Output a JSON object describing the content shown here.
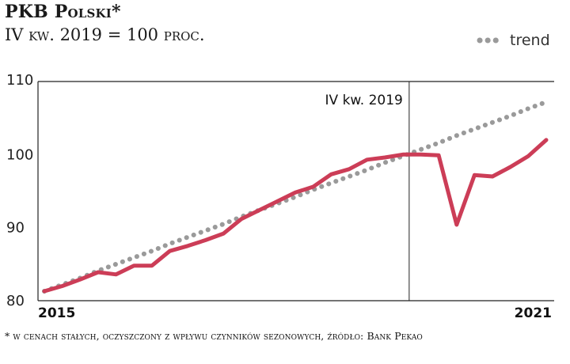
{
  "header": {
    "title": "PKB Polski*",
    "subtitle": "IV kw. 2019 = 100 proc."
  },
  "legend": {
    "trend_label": "trend"
  },
  "footnote": "* w cenach stałych, oczyszczony z wpływu czynników sezonowych, źródło: Bank Pekao",
  "colors": {
    "gdp": "#cc3d57",
    "trend": "#9a9a9a",
    "axis": "#222222"
  },
  "chart_data": {
    "type": "line",
    "title": "PKB Polski*",
    "subtitle": "IV kw. 2019 = 100 proc.",
    "ylim": [
      80,
      110
    ],
    "yticks": [
      "110",
      "100",
      "90",
      "80"
    ],
    "x_labels": {
      "start": "2015",
      "end": "2021"
    },
    "marker": {
      "label": "IV kw. 2019",
      "index": 20
    },
    "grid": false,
    "legend_position": "top-right",
    "series": [
      {
        "role": "gdp",
        "values": [
          81.3,
          82.0,
          82.9,
          83.9,
          83.6,
          84.8,
          84.8,
          86.8,
          87.5,
          88.3,
          89.2,
          91.2,
          92.4,
          93.6,
          94.8,
          95.6,
          97.3,
          98.0,
          99.3,
          99.6,
          100.0,
          100.0,
          99.9,
          90.4,
          97.2,
          97.0,
          98.3,
          99.8,
          102.0
        ]
      },
      {
        "role": "trend",
        "name": "trend",
        "values": [
          81.3,
          82.2,
          83.1,
          84.1,
          85.0,
          85.9,
          86.8,
          87.8,
          88.7,
          89.6,
          90.5,
          91.5,
          92.4,
          93.3,
          94.2,
          95.2,
          96.1,
          97.0,
          97.9,
          98.9,
          99.8,
          100.7,
          101.6,
          102.6,
          103.5,
          104.4,
          105.3,
          106.3,
          107.2
        ]
      }
    ]
  }
}
